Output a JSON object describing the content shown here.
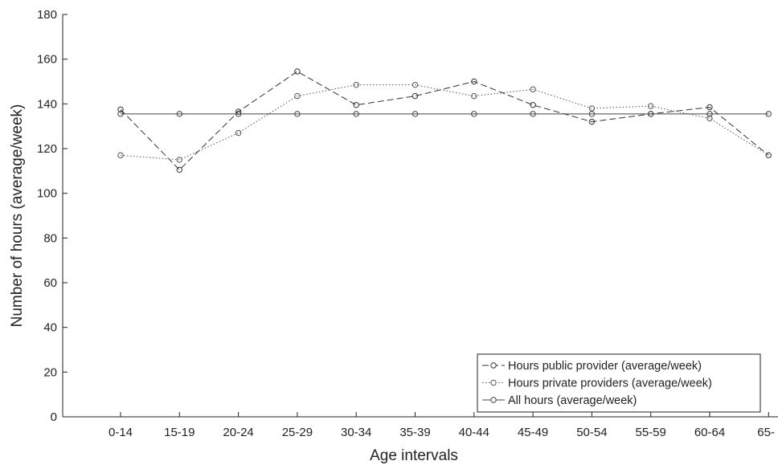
{
  "chart_data": {
    "type": "line",
    "title": "",
    "xlabel": "Age intervals",
    "ylabel": "Number of hours (average/week)",
    "categories": [
      "0-14",
      "15-19",
      "20-24",
      "25-29",
      "30-34",
      "35-39",
      "40-44",
      "45-49",
      "50-54",
      "55-59",
      "60-64",
      "65-"
    ],
    "ylim": [
      0,
      180
    ],
    "yticks": [
      0,
      20,
      40,
      60,
      80,
      100,
      120,
      140,
      160,
      180
    ],
    "grid": false,
    "legend_position": "bottom-right",
    "series": [
      {
        "name": "Hours public provider (average/week)",
        "line_style": "dashed",
        "marker": "circle",
        "color": "#333333",
        "values": [
          137.5,
          110.5,
          136.5,
          154.5,
          139.5,
          143.5,
          150,
          139.5,
          132,
          135.5,
          138.5,
          117
        ]
      },
      {
        "name": "Hours private providers (average/week)",
        "line_style": "dotted",
        "marker": "circle",
        "color": "#555555",
        "values": [
          117,
          115,
          127,
          143.5,
          148.5,
          148.5,
          143.5,
          146.5,
          138,
          139,
          133.5,
          117
        ]
      },
      {
        "name": "All hours (average/week)",
        "line_style": "solid",
        "marker": "circle",
        "color": "#444444",
        "values": [
          135.5,
          135.5,
          135.5,
          135.5,
          135.5,
          135.5,
          135.5,
          135.5,
          135.5,
          135.5,
          135.5,
          135.5
        ]
      }
    ]
  }
}
